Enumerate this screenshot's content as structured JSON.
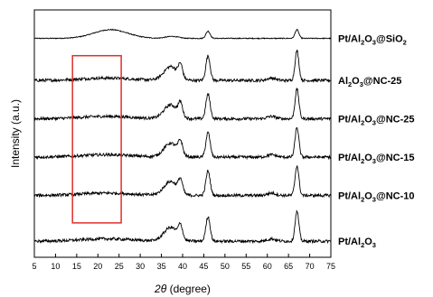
{
  "chart_data": {
    "type": "line",
    "xlabel_parts": {
      "italic": "2θ",
      "rest": " (degree)"
    },
    "ylabel": "Intensity (a.u.)",
    "xlim": [
      5,
      75
    ],
    "xticks": [
      5,
      10,
      15,
      20,
      25,
      30,
      35,
      40,
      45,
      50,
      55,
      60,
      65,
      70,
      75
    ],
    "yticks": [],
    "grid": false,
    "legend_placement": "right, aligned with each curve",
    "series": [
      {
        "label_parts": [
          [
            "Pt/Al",
            ""
          ],
          [
            "2",
            "sub"
          ],
          [
            "O",
            ""
          ],
          [
            "3",
            "sub"
          ],
          [
            "@SiO",
            ""
          ],
          [
            "2",
            "sub"
          ]
        ],
        "baseline_frac": 0.885,
        "profile": "silica"
      },
      {
        "label_parts": [
          [
            "Al",
            ""
          ],
          [
            "2",
            "sub"
          ],
          [
            "O",
            ""
          ],
          [
            "3",
            "sub"
          ],
          [
            "@NC-25",
            ""
          ]
        ],
        "baseline_frac": 0.715,
        "profile": "alumina"
      },
      {
        "label_parts": [
          [
            "Pt/Al",
            ""
          ],
          [
            "2",
            "sub"
          ],
          [
            "O",
            ""
          ],
          [
            "3",
            "sub"
          ],
          [
            "@NC-25",
            ""
          ]
        ],
        "baseline_frac": 0.56,
        "profile": "alumina"
      },
      {
        "label_parts": [
          [
            "Pt/Al",
            ""
          ],
          [
            "2",
            "sub"
          ],
          [
            "O",
            ""
          ],
          [
            "3",
            "sub"
          ],
          [
            "@NC-15",
            ""
          ]
        ],
        "baseline_frac": 0.405,
        "profile": "alumina"
      },
      {
        "label_parts": [
          [
            "Pt/Al",
            ""
          ],
          [
            "2",
            "sub"
          ],
          [
            "O",
            ""
          ],
          [
            "3",
            "sub"
          ],
          [
            "@NC-10",
            ""
          ]
        ],
        "baseline_frac": 0.25,
        "profile": "alumina"
      },
      {
        "label_parts": [
          [
            "Pt/Al",
            ""
          ],
          [
            "2",
            "sub"
          ],
          [
            "O",
            ""
          ],
          [
            "3",
            "sub"
          ]
        ],
        "baseline_frac": 0.065,
        "profile": "alumina"
      }
    ],
    "peaks_alumina": [
      [
        37.2,
        0.35,
        1.6
      ],
      [
        39.5,
        0.32,
        0.5
      ],
      [
        46.0,
        0.62,
        0.5
      ],
      [
        61.0,
        0.06,
        1.0
      ],
      [
        67.0,
        0.75,
        0.45
      ]
    ],
    "peaks_silica": [
      [
        23,
        0.22,
        4.0
      ],
      [
        37.5,
        0.05,
        1.5
      ],
      [
        46.0,
        0.18,
        0.5
      ],
      [
        67.0,
        0.22,
        0.45
      ]
    ],
    "highlight_box": {
      "x_range": [
        14,
        25.5
      ],
      "color": "#e0302a"
    },
    "colors": {
      "line": "#000000",
      "highlight": "#e0302a"
    }
  }
}
